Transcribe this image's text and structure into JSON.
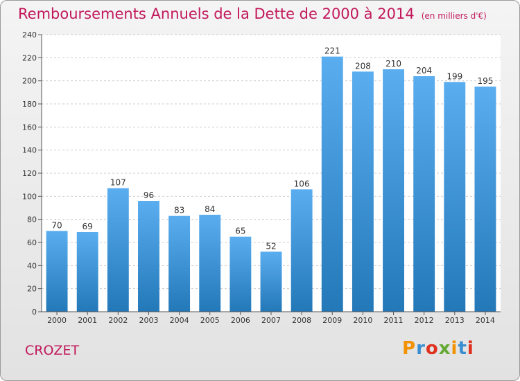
{
  "header": {
    "title": "Remboursements Annuels de la Dette de 2000 à 2014",
    "unit": "(en milliers d'€)"
  },
  "footer": {
    "commune": "CROZET",
    "logo": "Proxiti"
  },
  "colors": {
    "accent": "#c2185b",
    "bar_top": "#5aaef0",
    "bar_bottom": "#2378b8"
  },
  "chart_data": {
    "type": "bar",
    "title": "Remboursements Annuels de la Dette de 2000 à 2014",
    "subtitle": "(en milliers d'€)",
    "xlabel": "",
    "ylabel": "",
    "categories": [
      "2000",
      "2001",
      "2002",
      "2003",
      "2004",
      "2005",
      "2006",
      "2007",
      "2008",
      "2009",
      "2010",
      "2011",
      "2012",
      "2013",
      "2014"
    ],
    "values": [
      70,
      69,
      107,
      96,
      83,
      84,
      65,
      52,
      106,
      221,
      208,
      210,
      204,
      199,
      195
    ],
    "ylim": [
      0,
      240
    ],
    "yticks": [
      0,
      20,
      40,
      60,
      80,
      100,
      120,
      140,
      160,
      180,
      200,
      220,
      240
    ],
    "grid": true,
    "data_labels": true
  }
}
